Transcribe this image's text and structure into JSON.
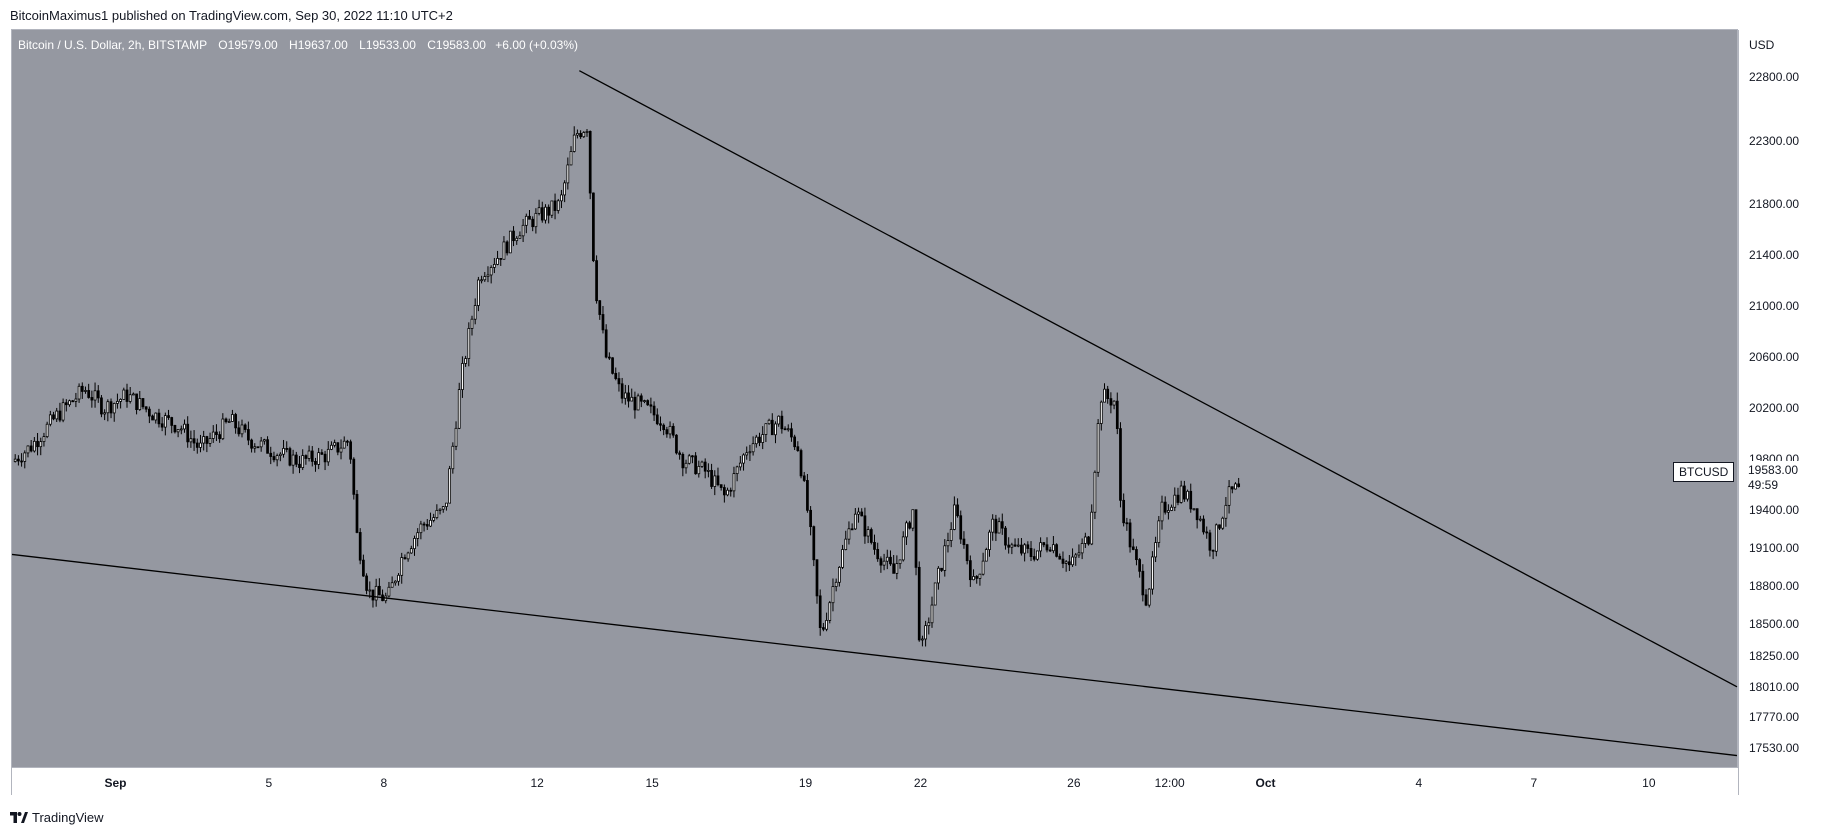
{
  "header": {
    "credit": "BitcoinMaximus1 published on TradingView.com, Sep 30, 2022 11:10 UTC+2"
  },
  "legend": {
    "symbol": "Bitcoin / U.S. Dollar, 2h, BITSTAMP",
    "open_key": "O",
    "open": "19579.00",
    "high_key": "H",
    "high": "19637.00",
    "low_key": "L",
    "low": "19533.00",
    "close_key": "C",
    "close": "19583.00",
    "change": "+6.00 (+0.03%)"
  },
  "tags": {
    "symbol": "BTCUSD",
    "last_price": "19583.00",
    "countdown": "49:59"
  },
  "brand": {
    "name": "TradingView"
  },
  "colors": {
    "plot_background": "#9598a1",
    "candle": "#000000",
    "trendline": "#000000"
  },
  "chart_data": {
    "type": "candlestick",
    "instrument": "Bitcoin / U.S. Dollar",
    "interval": "2h",
    "exchange": "BITSTAMP",
    "unit": "USD",
    "y_ticks": [
      22800,
      22300,
      21800,
      21400,
      21000,
      20600,
      20200,
      19800,
      19400,
      19100,
      18800,
      18500,
      18250,
      18010,
      17770,
      17530
    ],
    "y_tick_labels": [
      "22800.00",
      "22300.00",
      "21800.00",
      "21400.00",
      "21000.00",
      "20600.00",
      "20200.00",
      "19800.00",
      "19400.00",
      "19100.00",
      "18800.00",
      "18500.00",
      "18250.00",
      "18010.00",
      "17770.00",
      "17530.00"
    ],
    "x_ticks": [
      {
        "label": "Sep",
        "day": 1,
        "bold": true
      },
      {
        "label": "5",
        "day": 5
      },
      {
        "label": "8",
        "day": 8
      },
      {
        "label": "12",
        "day": 12
      },
      {
        "label": "15",
        "day": 15
      },
      {
        "label": "19",
        "day": 19
      },
      {
        "label": "22",
        "day": 22
      },
      {
        "label": "26",
        "day": 26
      },
      {
        "label": "12:00",
        "day": 28.5
      },
      {
        "label": "Oct",
        "day": 31,
        "bold": true
      },
      {
        "label": "4",
        "day": 35
      },
      {
        "label": "7",
        "day": 38
      },
      {
        "label": "10",
        "day": 41
      }
    ],
    "x_range_days": [
      -1.7,
      43.3
    ],
    "y_range": [
      17380,
      23170
    ],
    "price_path": [
      [
        -1.7,
        19780
      ],
      [
        -1.2,
        19900
      ],
      [
        -0.5,
        20150
      ],
      [
        0.2,
        20350
      ],
      [
        0.7,
        20200
      ],
      [
        1.3,
        20300
      ],
      [
        2.0,
        20150
      ],
      [
        2.7,
        20050
      ],
      [
        3.2,
        19880
      ],
      [
        4.0,
        20100
      ],
      [
        4.5,
        19950
      ],
      [
        5.2,
        19850
      ],
      [
        5.8,
        19780
      ],
      [
        6.5,
        19830
      ],
      [
        7.1,
        19950
      ],
      [
        7.3,
        19200
      ],
      [
        7.6,
        18750
      ],
      [
        8.1,
        18700
      ],
      [
        8.5,
        19050
      ],
      [
        9.0,
        19280
      ],
      [
        9.6,
        19400
      ],
      [
        10.0,
        20400
      ],
      [
        10.5,
        21250
      ],
      [
        11.0,
        21400
      ],
      [
        11.5,
        21600
      ],
      [
        12.0,
        21700
      ],
      [
        12.6,
        21800
      ],
      [
        13.0,
        22350
      ],
      [
        13.3,
        22420
      ],
      [
        13.5,
        21200
      ],
      [
        13.8,
        20600
      ],
      [
        14.2,
        20300
      ],
      [
        14.8,
        20200
      ],
      [
        15.3,
        20100
      ],
      [
        15.8,
        19800
      ],
      [
        16.4,
        19700
      ],
      [
        16.9,
        19500
      ],
      [
        17.5,
        19900
      ],
      [
        18.3,
        20100
      ],
      [
        18.8,
        19900
      ],
      [
        19.1,
        19300
      ],
      [
        19.4,
        18400
      ],
      [
        19.8,
        18900
      ],
      [
        20.3,
        19400
      ],
      [
        20.8,
        19100
      ],
      [
        21.3,
        18900
      ],
      [
        21.8,
        19400
      ],
      [
        22.0,
        18250
      ],
      [
        22.4,
        18800
      ],
      [
        22.9,
        19400
      ],
      [
        23.4,
        18800
      ],
      [
        23.9,
        19300
      ],
      [
        24.4,
        19100
      ],
      [
        24.9,
        19050
      ],
      [
        25.4,
        19150
      ],
      [
        25.9,
        18950
      ],
      [
        26.2,
        19100
      ],
      [
        26.4,
        19200
      ],
      [
        26.7,
        20300
      ],
      [
        27.1,
        20250
      ],
      [
        27.2,
        19500
      ],
      [
        27.5,
        19100
      ],
      [
        27.9,
        18700
      ],
      [
        28.3,
        19400
      ],
      [
        28.8,
        19550
      ],
      [
        29.2,
        19400
      ],
      [
        29.6,
        19100
      ],
      [
        30.0,
        19500
      ],
      [
        30.3,
        19583
      ]
    ],
    "trendlines": [
      {
        "name": "descending-resistance",
        "points": [
          [
            13.1,
            22850
          ],
          [
            43.3,
            18010
          ]
        ]
      },
      {
        "name": "descending-support",
        "points": [
          [
            -1.7,
            19050
          ],
          [
            43.3,
            17470
          ]
        ]
      }
    ],
    "last_price": 19583.0
  }
}
